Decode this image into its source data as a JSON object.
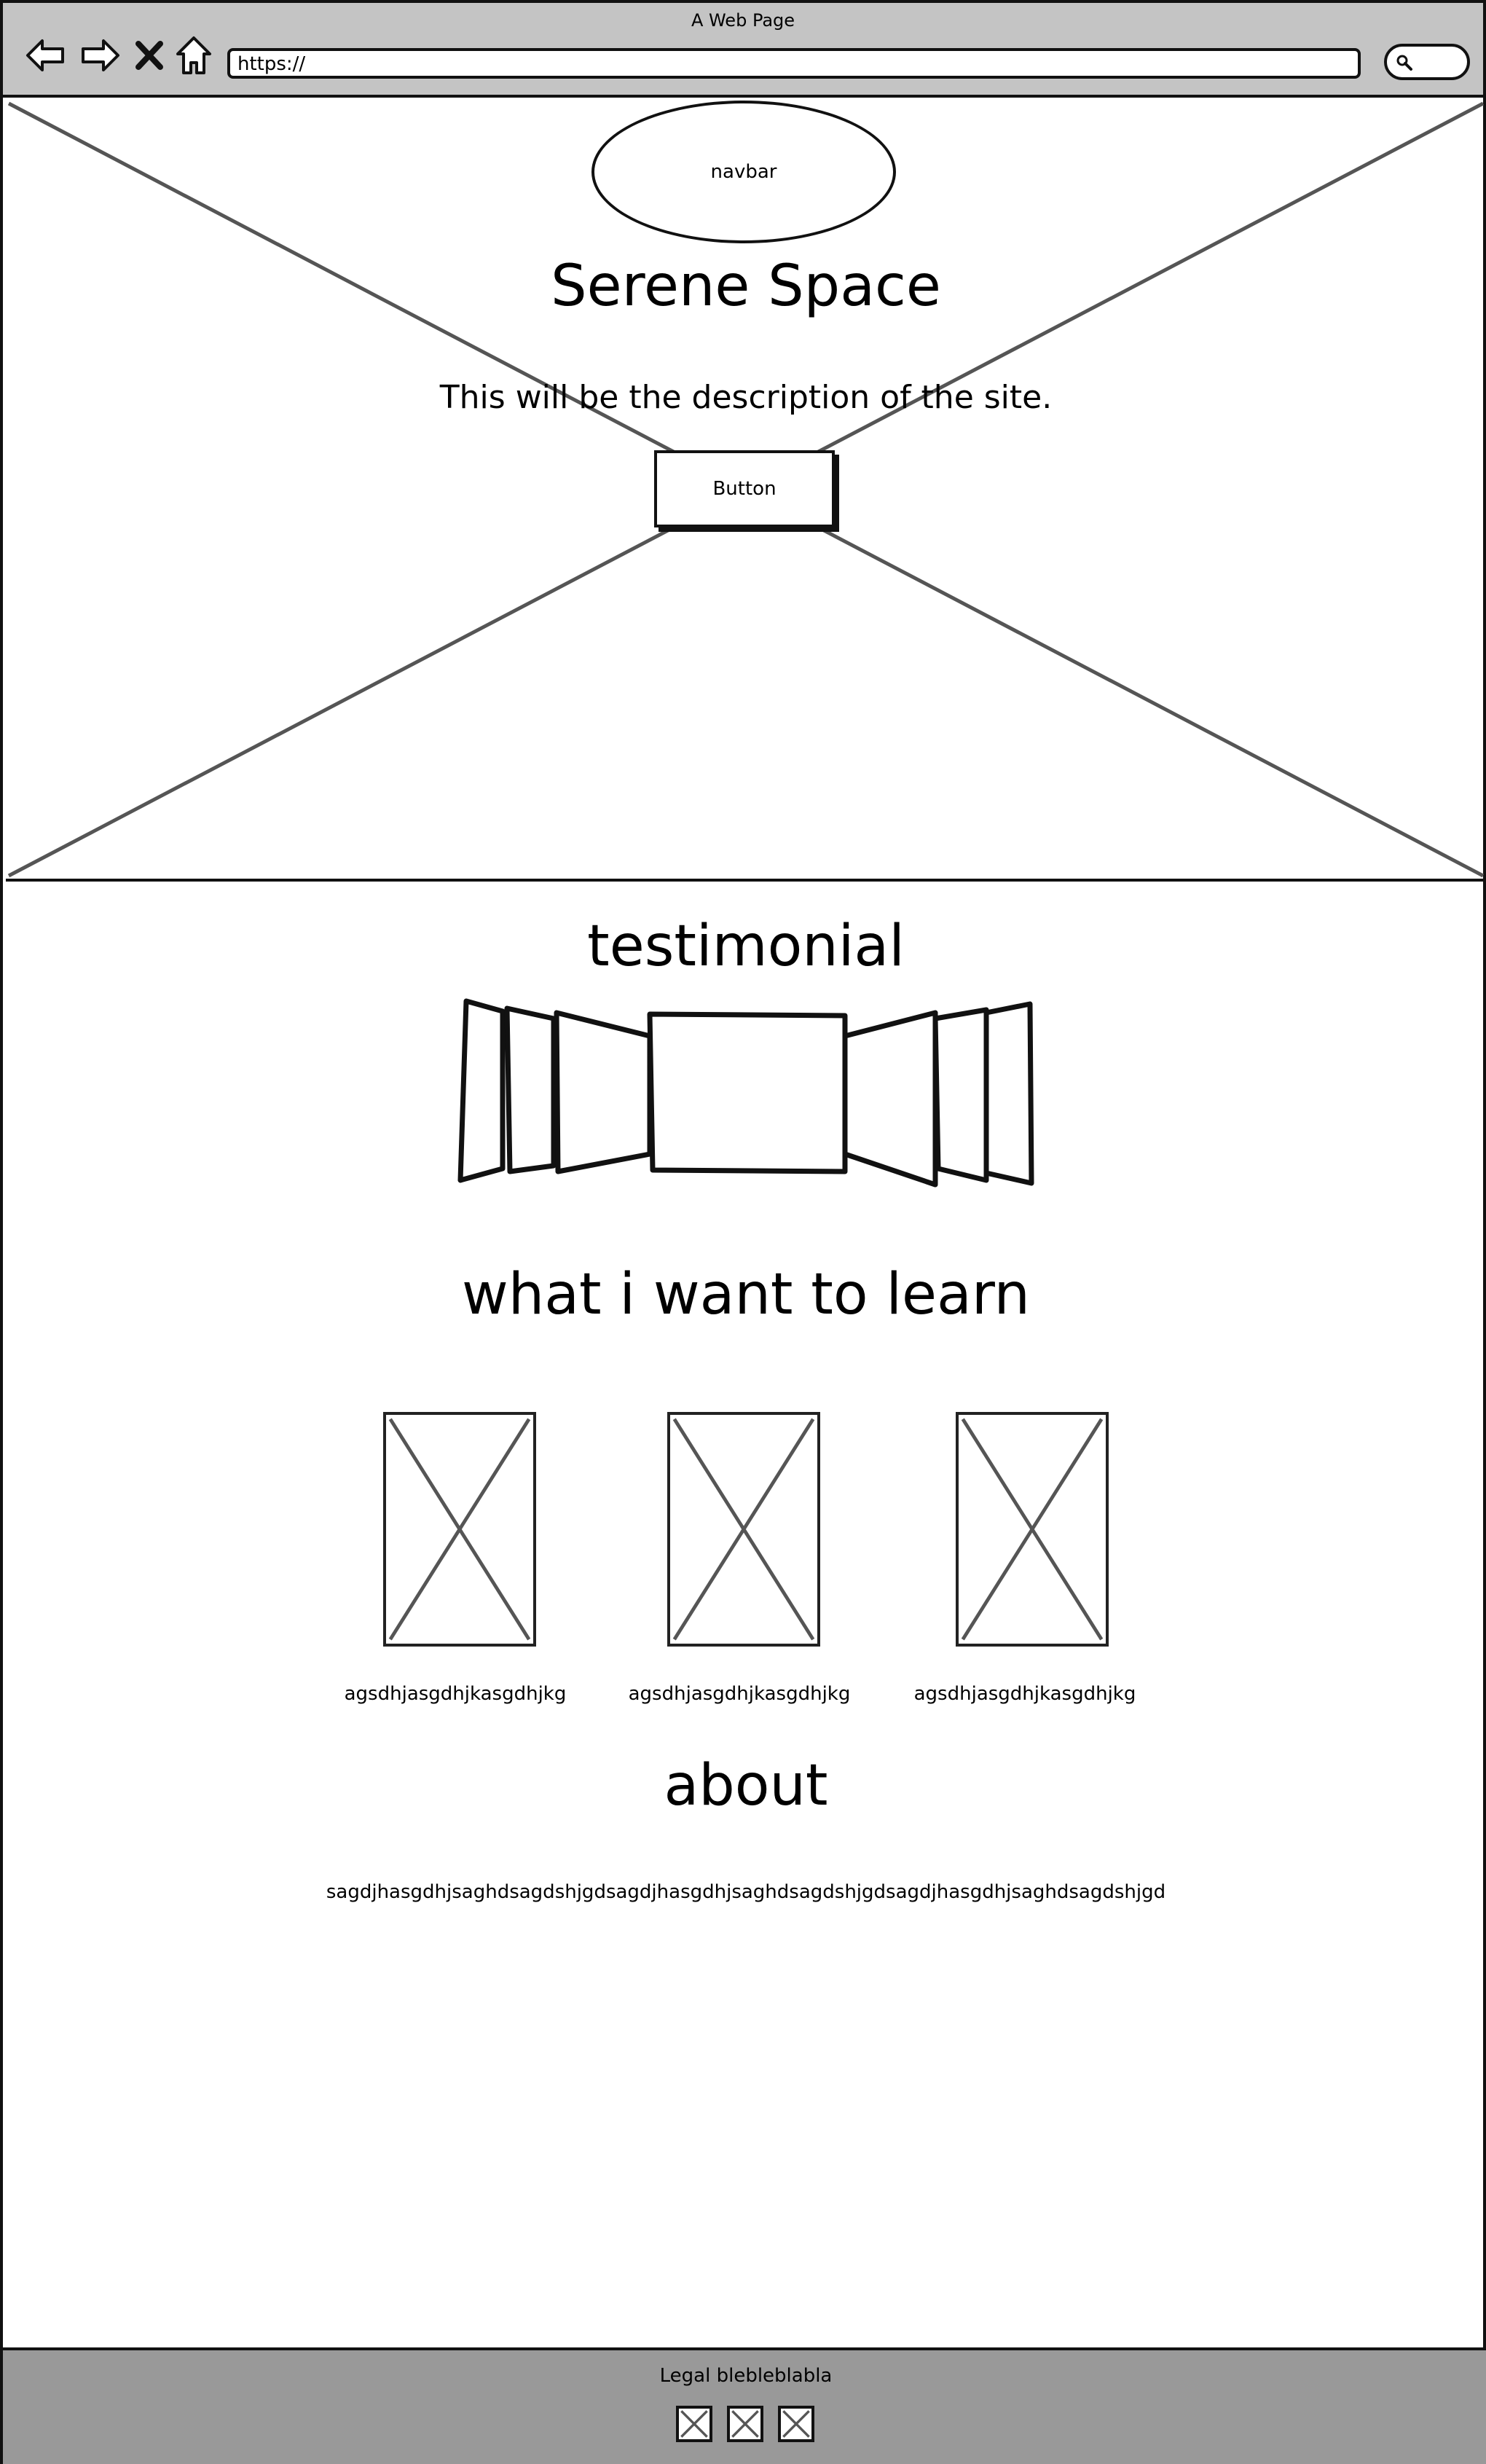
{
  "browser": {
    "window_title": "A Web Page",
    "url": "https://",
    "icons": {
      "back": "back-arrow-icon",
      "forward": "forward-arrow-icon",
      "stop": "close-icon",
      "home": "home-icon",
      "search": "search-icon"
    }
  },
  "hero": {
    "navbar_label": "navbar",
    "title": "Serene Space",
    "description": "This will be the description of the site.",
    "button_label": "Button"
  },
  "testimonial": {
    "heading": "testimonial"
  },
  "learn": {
    "heading": "what i want to learn",
    "items": [
      {
        "caption": "agsdhjasgdhjkasgdhjkg"
      },
      {
        "caption": "agsdhjasgdhjkasgdhjkg"
      },
      {
        "caption": "agsdhjasgdhjkasgdhjkg"
      }
    ]
  },
  "about": {
    "heading": "about",
    "text": "sagdjhasgdhjsaghdsagdshjgdsagdjhasgdhjsaghdsagdshjgdsagdjhasgdhjsaghdsagdshjgd"
  },
  "footer": {
    "legal": "Legal blebleblabla",
    "social_icons": [
      "image-placeholder-icon",
      "image-placeholder-icon",
      "image-placeholder-icon"
    ]
  },
  "colors": {
    "chrome_bg": "#c4c4c4",
    "footer_bg": "#999999",
    "stroke": "#111111",
    "placeholder_line": "#555555"
  }
}
